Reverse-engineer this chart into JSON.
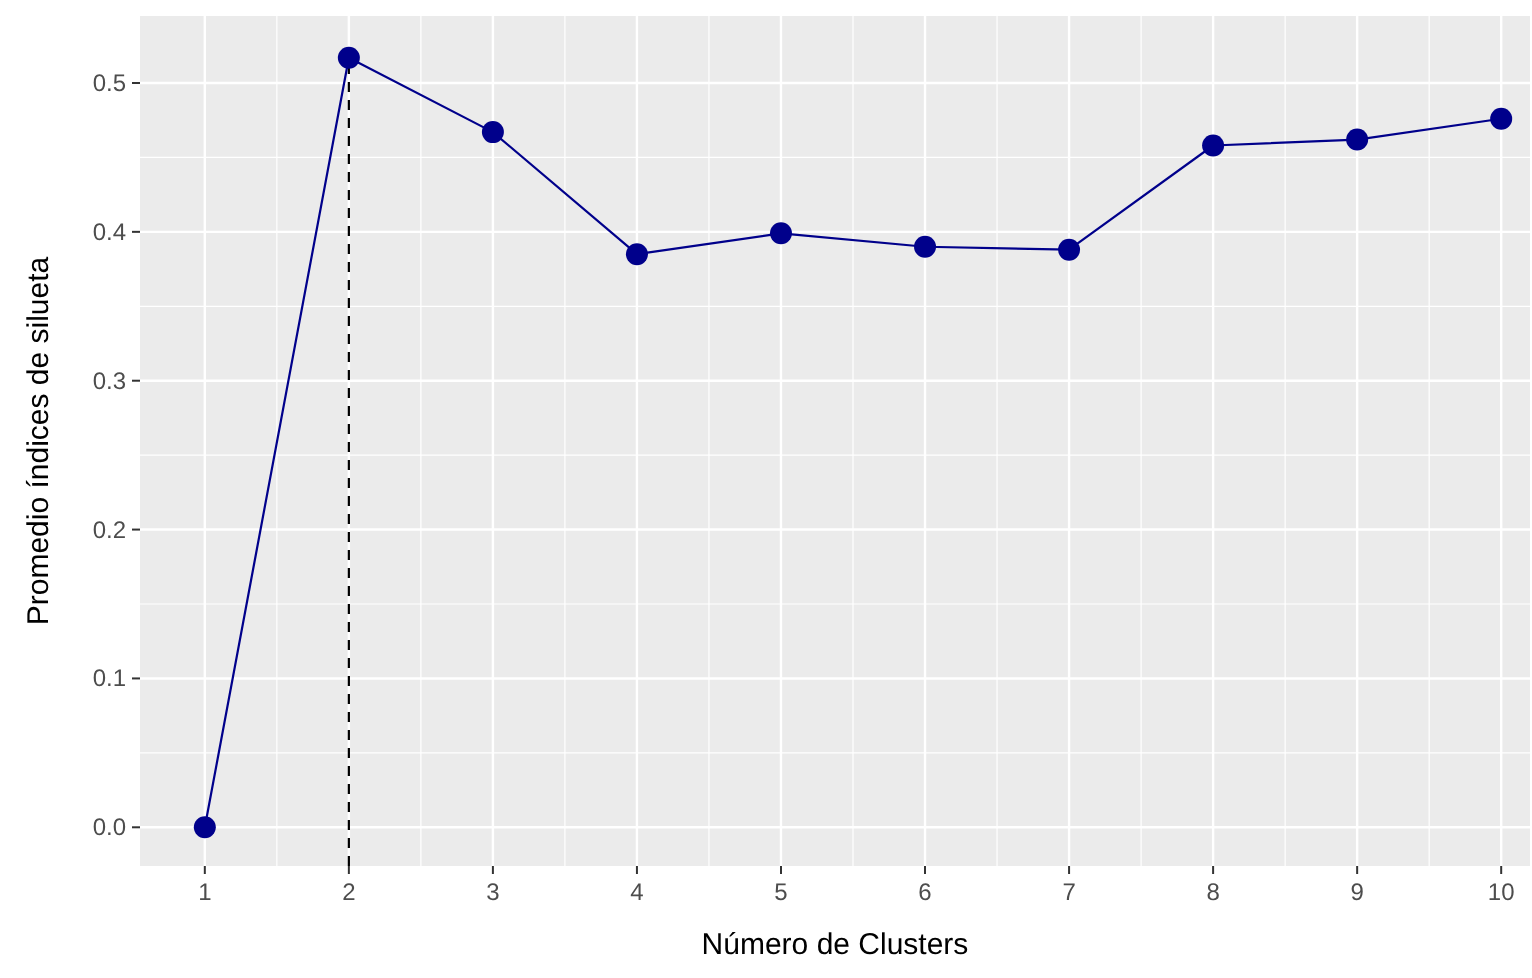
{
  "chart_data": {
    "type": "line",
    "xlabel": "Número de Clusters",
    "ylabel": "Promedio índices de silueta",
    "x": [
      1,
      2,
      3,
      4,
      5,
      6,
      7,
      8,
      9,
      10
    ],
    "series": [
      {
        "color": "#00008b",
        "values": [
          0,
          0.517,
          0.467,
          0.385,
          0.399,
          0.39,
          0.388,
          0.458,
          0.462,
          0.476
        ]
      }
    ],
    "xlim": [
      0.55,
      10.2
    ],
    "xticks": [
      1,
      2,
      3,
      4,
      5,
      6,
      7,
      8,
      9,
      10
    ],
    "ylim": [
      -0.026,
      0.545
    ],
    "yticks": [
      {
        "value": 0,
        "label": "0.0"
      },
      0.1,
      0.2,
      0.3,
      0.4,
      0.5
    ],
    "ref_lines": [
      {
        "axis": "x",
        "value": 2,
        "line_style": "dashed",
        "color": "#000000"
      }
    ],
    "grid": true,
    "marker": "circle",
    "line_style": "solid"
  }
}
